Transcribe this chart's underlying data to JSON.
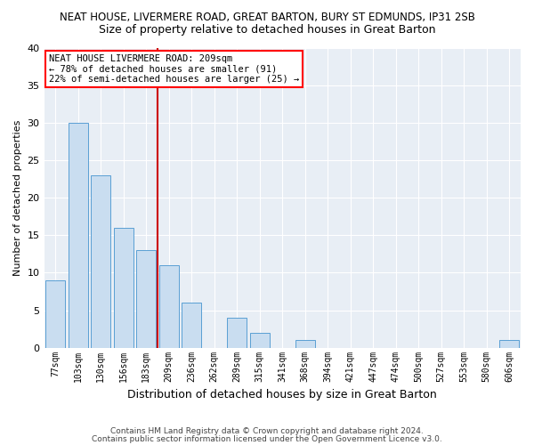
{
  "title1": "NEAT HOUSE, LIVERMERE ROAD, GREAT BARTON, BURY ST EDMUNDS, IP31 2SB",
  "title2": "Size of property relative to detached houses in Great Barton",
  "xlabel": "Distribution of detached houses by size in Great Barton",
  "ylabel": "Number of detached properties",
  "categories": [
    "77sqm",
    "103sqm",
    "130sqm",
    "156sqm",
    "183sqm",
    "209sqm",
    "236sqm",
    "262sqm",
    "289sqm",
    "315sqm",
    "341sqm",
    "368sqm",
    "394sqm",
    "421sqm",
    "447sqm",
    "474sqm",
    "500sqm",
    "527sqm",
    "553sqm",
    "580sqm",
    "606sqm"
  ],
  "values": [
    9,
    30,
    23,
    16,
    13,
    11,
    6,
    0,
    4,
    2,
    0,
    1,
    0,
    0,
    0,
    0,
    0,
    0,
    0,
    0,
    1
  ],
  "bar_color": "#c9ddf0",
  "bar_edge_color": "#5a9fd4",
  "ref_line_color": "#cc0000",
  "ref_line_x": 4.5,
  "ylim": [
    0,
    40
  ],
  "yticks": [
    0,
    5,
    10,
    15,
    20,
    25,
    30,
    35,
    40
  ],
  "background_color": "#e8eef5",
  "annotation_line1": "NEAT HOUSE LIVERMERE ROAD: 209sqm",
  "annotation_line2": "← 78% of detached houses are smaller (91)",
  "annotation_line3": "22% of semi-detached houses are larger (25) →",
  "footnote1": "Contains HM Land Registry data © Crown copyright and database right 2024.",
  "footnote2": "Contains public sector information licensed under the Open Government Licence v3.0.",
  "title1_fontsize": 8.5,
  "title2_fontsize": 9,
  "ylabel_fontsize": 8,
  "xlabel_fontsize": 9,
  "tick_fontsize": 8,
  "xtick_fontsize": 7,
  "annot_fontsize": 7.5,
  "footnote_fontsize": 6.5
}
